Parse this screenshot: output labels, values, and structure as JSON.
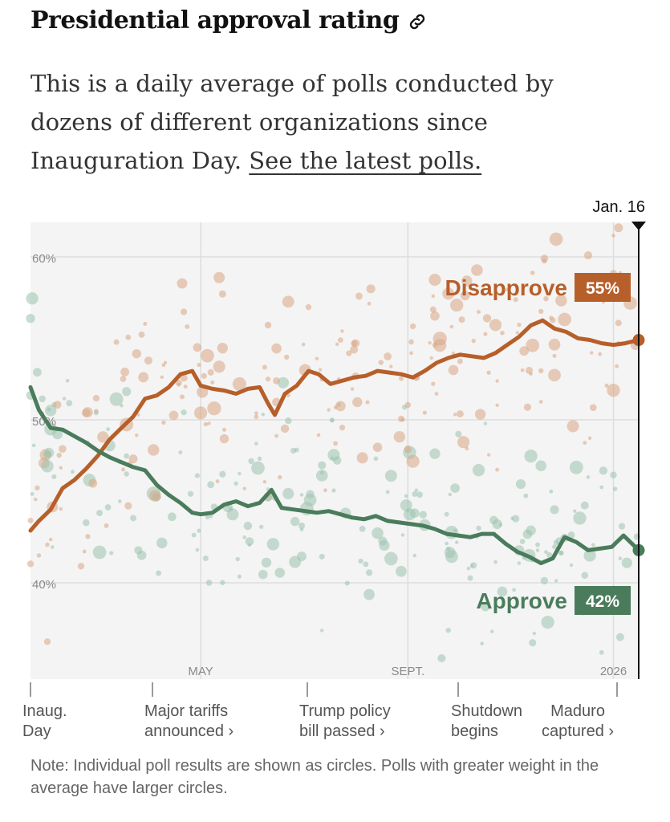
{
  "header": {
    "title": "Presidential approval rating",
    "description": "This is a daily average of polls conducted by dozens of different organizations since Inauguration Day.",
    "link_text": "See the latest polls."
  },
  "colors": {
    "disapprove": "#B75F2A",
    "approve": "#4A7C5C",
    "disapprove_dots": "#D9A583",
    "approve_dots": "#9DC2AE",
    "plot_bg": "#F4F4F4",
    "grid": "#DDDDDD"
  },
  "chart_data": {
    "type": "line",
    "title": "Presidential approval rating",
    "y_ticks": [
      "60%",
      "50%",
      "40%"
    ],
    "ylim": [
      34,
      63
    ],
    "x_range": [
      "2025-01-20",
      "2026-01-16"
    ],
    "x_ticks": [
      {
        "date": "2025-05-01",
        "label": "MAY"
      },
      {
        "date": "2025-09-01",
        "label": "SEPT."
      },
      {
        "date": "2026-01-01",
        "label": "2026"
      }
    ],
    "current_date_label": "Jan. 16",
    "series": [
      {
        "name": "Disapprove",
        "final_label": "55%",
        "points": [
          [
            "2025-01-20",
            43.2
          ],
          [
            "2025-01-25",
            43.8
          ],
          [
            "2025-02-01",
            44.5
          ],
          [
            "2025-02-08",
            45.8
          ],
          [
            "2025-02-15",
            46.3
          ],
          [
            "2025-02-22",
            47.0
          ],
          [
            "2025-03-01",
            47.8
          ],
          [
            "2025-03-08",
            48.8
          ],
          [
            "2025-03-15",
            49.5
          ],
          [
            "2025-03-22",
            50.2
          ],
          [
            "2025-03-29",
            51.3
          ],
          [
            "2025-04-05",
            51.5
          ],
          [
            "2025-04-12",
            52.0
          ],
          [
            "2025-04-19",
            52.8
          ],
          [
            "2025-04-26",
            53.0
          ],
          [
            "2025-05-01",
            52.1
          ],
          [
            "2025-05-08",
            51.9
          ],
          [
            "2025-05-15",
            51.8
          ],
          [
            "2025-05-22",
            51.6
          ],
          [
            "2025-05-29",
            51.9
          ],
          [
            "2025-06-05",
            52.0
          ],
          [
            "2025-06-10",
            51.0
          ],
          [
            "2025-06-14",
            50.3
          ],
          [
            "2025-06-20",
            51.6
          ],
          [
            "2025-06-27",
            52.1
          ],
          [
            "2025-07-04",
            53.0
          ],
          [
            "2025-07-10",
            52.8
          ],
          [
            "2025-07-17",
            52.2
          ],
          [
            "2025-07-24",
            52.4
          ],
          [
            "2025-07-31",
            52.6
          ],
          [
            "2025-08-07",
            52.7
          ],
          [
            "2025-08-14",
            53.0
          ],
          [
            "2025-08-21",
            52.9
          ],
          [
            "2025-08-28",
            52.8
          ],
          [
            "2025-09-04",
            52.6
          ],
          [
            "2025-09-11",
            53.0
          ],
          [
            "2025-09-18",
            53.5
          ],
          [
            "2025-09-25",
            53.8
          ],
          [
            "2025-10-02",
            54.0
          ],
          [
            "2025-10-09",
            53.9
          ],
          [
            "2025-10-16",
            53.8
          ],
          [
            "2025-10-23",
            54.1
          ],
          [
            "2025-10-30",
            54.6
          ],
          [
            "2025-11-06",
            55.1
          ],
          [
            "2025-11-13",
            55.8
          ],
          [
            "2025-11-20",
            56.1
          ],
          [
            "2025-11-27",
            55.6
          ],
          [
            "2025-12-04",
            55.4
          ],
          [
            "2025-12-11",
            55.0
          ],
          [
            "2025-12-18",
            54.9
          ],
          [
            "2025-12-25",
            54.7
          ],
          [
            "2026-01-01",
            54.6
          ],
          [
            "2026-01-08",
            54.7
          ],
          [
            "2026-01-16",
            54.9
          ]
        ]
      },
      {
        "name": "Approve",
        "final_label": "42%",
        "points": [
          [
            "2025-01-20",
            52.0
          ],
          [
            "2025-01-25",
            50.6
          ],
          [
            "2025-02-01",
            49.5
          ],
          [
            "2025-02-08",
            49.4
          ],
          [
            "2025-02-15",
            49.0
          ],
          [
            "2025-02-22",
            48.6
          ],
          [
            "2025-03-01",
            48.1
          ],
          [
            "2025-03-08",
            47.7
          ],
          [
            "2025-03-15",
            47.4
          ],
          [
            "2025-03-22",
            47.1
          ],
          [
            "2025-03-29",
            46.9
          ],
          [
            "2025-04-05",
            46.0
          ],
          [
            "2025-04-12",
            45.4
          ],
          [
            "2025-04-19",
            44.9
          ],
          [
            "2025-04-26",
            44.3
          ],
          [
            "2025-05-01",
            44.2
          ],
          [
            "2025-05-08",
            44.3
          ],
          [
            "2025-05-15",
            44.8
          ],
          [
            "2025-05-22",
            45.0
          ],
          [
            "2025-05-29",
            44.7
          ],
          [
            "2025-06-05",
            44.9
          ],
          [
            "2025-06-12",
            45.7
          ],
          [
            "2025-06-18",
            44.6
          ],
          [
            "2025-06-25",
            44.5
          ],
          [
            "2025-07-02",
            44.4
          ],
          [
            "2025-07-09",
            44.3
          ],
          [
            "2025-07-16",
            44.4
          ],
          [
            "2025-07-23",
            44.2
          ],
          [
            "2025-07-30",
            44.0
          ],
          [
            "2025-08-06",
            43.9
          ],
          [
            "2025-08-13",
            44.1
          ],
          [
            "2025-08-20",
            43.8
          ],
          [
            "2025-08-27",
            43.7
          ],
          [
            "2025-09-03",
            43.6
          ],
          [
            "2025-09-10",
            43.5
          ],
          [
            "2025-09-17",
            43.3
          ],
          [
            "2025-09-24",
            43.0
          ],
          [
            "2025-10-01",
            42.9
          ],
          [
            "2025-10-08",
            42.8
          ],
          [
            "2025-10-15",
            43.0
          ],
          [
            "2025-10-22",
            43.0
          ],
          [
            "2025-10-29",
            42.4
          ],
          [
            "2025-11-05",
            41.9
          ],
          [
            "2025-11-12",
            41.6
          ],
          [
            "2025-11-19",
            41.2
          ],
          [
            "2025-11-26",
            41.5
          ],
          [
            "2025-12-03",
            42.8
          ],
          [
            "2025-12-10",
            42.5
          ],
          [
            "2025-12-17",
            42.0
          ],
          [
            "2025-12-24",
            42.1
          ],
          [
            "2025-12-31",
            42.2
          ],
          [
            "2026-01-07",
            42.9
          ],
          [
            "2026-01-16",
            42.0
          ]
        ]
      }
    ],
    "events": [
      {
        "label": "Inaug.\nDay",
        "date": "2025-01-20"
      },
      {
        "label": "Major tariffs\nannounced ›",
        "date": "2025-04-02"
      },
      {
        "label": "Trump policy\nbill passed ›",
        "date": "2025-07-04"
      },
      {
        "label": "Shutdown\nbegins",
        "date": "2025-10-01"
      },
      {
        "label": "Maduro\ncaptured ›",
        "date": "2026-01-03"
      }
    ],
    "note": "Note: Individual poll results are shown as circles. Polls with greater weight in the average have larger circles."
  }
}
